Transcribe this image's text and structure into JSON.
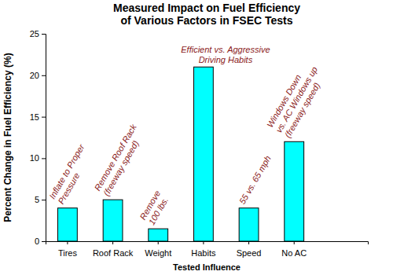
{
  "chart_data": {
    "type": "bar",
    "title": [
      "Measured Impact on Fuel Efficiency",
      "of Various Factors in FSEC Tests"
    ],
    "x_label": "Tested Influence",
    "y_label": "Percent Change in Fuel Efficiency (%)",
    "categories": [
      "Tires",
      "Roof Rack",
      "Weight",
      "Habits",
      "Speed",
      "No AC"
    ],
    "values": [
      4,
      5,
      1.5,
      21,
      4,
      12
    ],
    "annotations": [
      [
        "Inflate to Proper",
        "Pressure"
      ],
      [
        "Remove Roof Rack",
        "(freeway speed)"
      ],
      [
        "Remove",
        "100 lbs."
      ],
      [
        "Efficient vs. Aggressive",
        "Driving Habits"
      ],
      [
        "55 vs. 65 mph"
      ],
      [
        "Windows Down",
        "vs. AC Windows up",
        "(freeway speed)"
      ]
    ],
    "color": "#00ffff",
    "ylim": [
      0,
      25
    ],
    "yticks": [
      0,
      5,
      10,
      15,
      20,
      25
    ],
    "grid": false
  }
}
